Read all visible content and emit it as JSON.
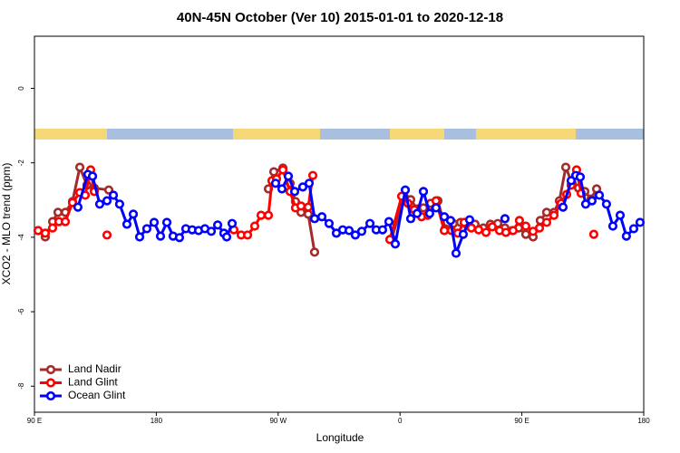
{
  "chart_data": {
    "type": "line",
    "title": "40N-45N October (Ver 10)   2015-01-01 to 2020-12-18",
    "x_label": "Longitude",
    "y_label": "XCO2 - MLO trend (ppm)",
    "xlim": [
      90,
      540
    ],
    "ylim": [
      -8.7,
      1.4
    ],
    "xticks": [
      {
        "value": 90,
        "label": "90 E"
      },
      180,
      {
        "value": 270,
        "label": "90 W"
      },
      {
        "value": 360,
        "label": "0"
      },
      {
        "value": 450,
        "label": "90 E"
      },
      {
        "value": 540,
        "label": "180"
      }
    ],
    "yticks": [
      0,
      -2,
      -4,
      -6,
      -8
    ],
    "legend": "bottom-left",
    "series": [
      {
        "name": "Land Nadir",
        "color": "#a52a2a",
        "x": [
          92.7,
          98.0,
          103.4,
          107.4,
          112.8,
          118.1,
          123.5,
          128.8,
          134.2,
          144.9,
          null,
          262.8,
          266.8,
          273.5,
          278.8,
          282.8,
          286.9,
          292.2,
          296.9,
          null,
          353.8,
          363.2,
          367.9,
          372.6,
          377.3,
          382.6,
          388.0,
          393.3,
          399.4,
          404.7,
          410.1,
          415.4,
          421.5,
          426.8,
          432.2,
          437.5,
          442.9,
          447.6,
          452.9,
          458.3,
          463.6,
          468.3,
          473.7,
          477.7,
          482.4,
          487.1,
          491.8,
          496.5,
          501.1,
          505.2
        ],
        "values": [
          -3.82,
          -3.99,
          -3.58,
          -3.33,
          -3.33,
          -3.04,
          -2.12,
          -2.6,
          -2.68,
          -2.73,
          null,
          -2.7,
          -2.24,
          -2.14,
          -2.55,
          -3.04,
          -3.33,
          -3.38,
          -4.4,
          null,
          -4.04,
          -2.92,
          -2.99,
          -3.24,
          -3.21,
          -3.09,
          -3.02,
          -3.77,
          -3.63,
          -3.6,
          -3.7,
          -3.65,
          -3.75,
          -3.65,
          -3.63,
          -3.75,
          -3.82,
          -3.75,
          -3.92,
          -3.99,
          -3.55,
          -3.33,
          -3.33,
          -3.02,
          -2.12,
          -2.55,
          -2.68,
          -2.77,
          -2.97,
          -2.7
        ]
      },
      {
        "name": "Land Glint",
        "color": "#ff0000",
        "x": [
          92.7,
          98.0,
          103.4,
          108.1,
          112.8,
          118.1,
          123.5,
          127.5,
          131.5,
          134.2,
          null,
          143.6,
          null,
          237.3,
          242.7,
          247.4,
          252.7,
          257.4,
          262.8,
          265.4,
          268.8,
          273.5,
          278.8,
          282.8,
          286.9,
          292.2,
          295.6,
          null,
          352.5,
          361.2,
          365.9,
          370.6,
          375.9,
          380.6,
          386.6,
          392.7,
          398.0,
          402.7,
          407.4,
          412.7,
          418.1,
          423.5,
          428.1,
          433.5,
          438.2,
          443.5,
          448.2,
          452.9,
          458.3,
          463.0,
          468.3,
          473.7,
          479.0,
          483.1,
          486.4,
          490.4,
          493.8,
          null,
          503.1
        ],
        "values": [
          -3.82,
          -3.89,
          -3.75,
          -3.58,
          -3.58,
          -3.07,
          -2.8,
          -2.87,
          -2.19,
          -2.77,
          null,
          -3.94,
          null,
          -3.8,
          -3.94,
          -3.94,
          -3.7,
          -3.41,
          -3.41,
          -2.48,
          -2.43,
          -2.19,
          -2.77,
          -3.21,
          -3.16,
          -3.19,
          -2.34,
          null,
          -4.06,
          -2.9,
          -3.09,
          -3.26,
          -3.45,
          -3.41,
          -3.02,
          -3.82,
          -3.82,
          -3.89,
          -3.6,
          -3.75,
          -3.8,
          -3.87,
          -3.72,
          -3.82,
          -3.87,
          -3.82,
          -3.55,
          -3.7,
          -3.84,
          -3.75,
          -3.6,
          -3.41,
          -3.09,
          -2.85,
          -2.6,
          -2.19,
          -2.82,
          null,
          -3.92
        ]
      },
      {
        "name": "Ocean Glint",
        "color": "#0000ff",
        "x": [
          122.1,
          129.5,
          132.9,
          138.2,
          143.6,
          148.3,
          152.9,
          158.3,
          163.0,
          167.7,
          173.0,
          178.4,
          183.1,
          187.8,
          192.4,
          197.1,
          201.8,
          206.5,
          211.2,
          215.9,
          220.6,
          225.3,
          229.9,
          232.0,
          236.0,
          null,
          268.1,
          272.8,
          277.5,
          282.2,
          288.2,
          292.9,
          296.9,
          302.3,
          307.6,
          313.0,
          317.7,
          322.4,
          327.0,
          331.7,
          337.8,
          342.4,
          347.1,
          351.8,
          356.5,
          363.9,
          367.9,
          372.6,
          377.3,
          381.9,
          386.6,
          392.7,
          397.3,
          401.4,
          406.7,
          411.4,
          null,
          437.5,
          null,
          480.4,
          486.4,
          489.8,
          493.1,
          497.1,
          501.8,
          507.2,
          512.5,
          517.2,
          522.6,
          527.2,
          532.6,
          537.3
        ],
        "values": [
          -3.19,
          -2.31,
          -2.36,
          -3.11,
          -3.02,
          -2.87,
          -3.11,
          -3.65,
          -3.38,
          -3.99,
          -3.77,
          -3.6,
          -3.97,
          -3.6,
          -3.97,
          -4.01,
          -3.77,
          -3.8,
          -3.82,
          -3.77,
          -3.84,
          -3.67,
          -3.89,
          -3.99,
          -3.63,
          null,
          -2.55,
          -2.7,
          -2.36,
          -2.77,
          -2.65,
          -2.55,
          -3.5,
          -3.45,
          -3.63,
          -3.89,
          -3.8,
          -3.82,
          -3.94,
          -3.84,
          -3.63,
          -3.8,
          -3.8,
          -3.58,
          -4.18,
          -2.73,
          -3.5,
          -3.36,
          -2.77,
          -3.36,
          -3.21,
          -3.45,
          -3.55,
          -4.43,
          -3.92,
          -3.53,
          null,
          -3.5,
          null,
          -3.19,
          -2.48,
          -2.34,
          -2.38,
          -3.11,
          -3.02,
          -2.87,
          -3.11,
          -3.7,
          -3.41,
          -3.97,
          -3.77,
          -3.6
        ]
      }
    ]
  }
}
